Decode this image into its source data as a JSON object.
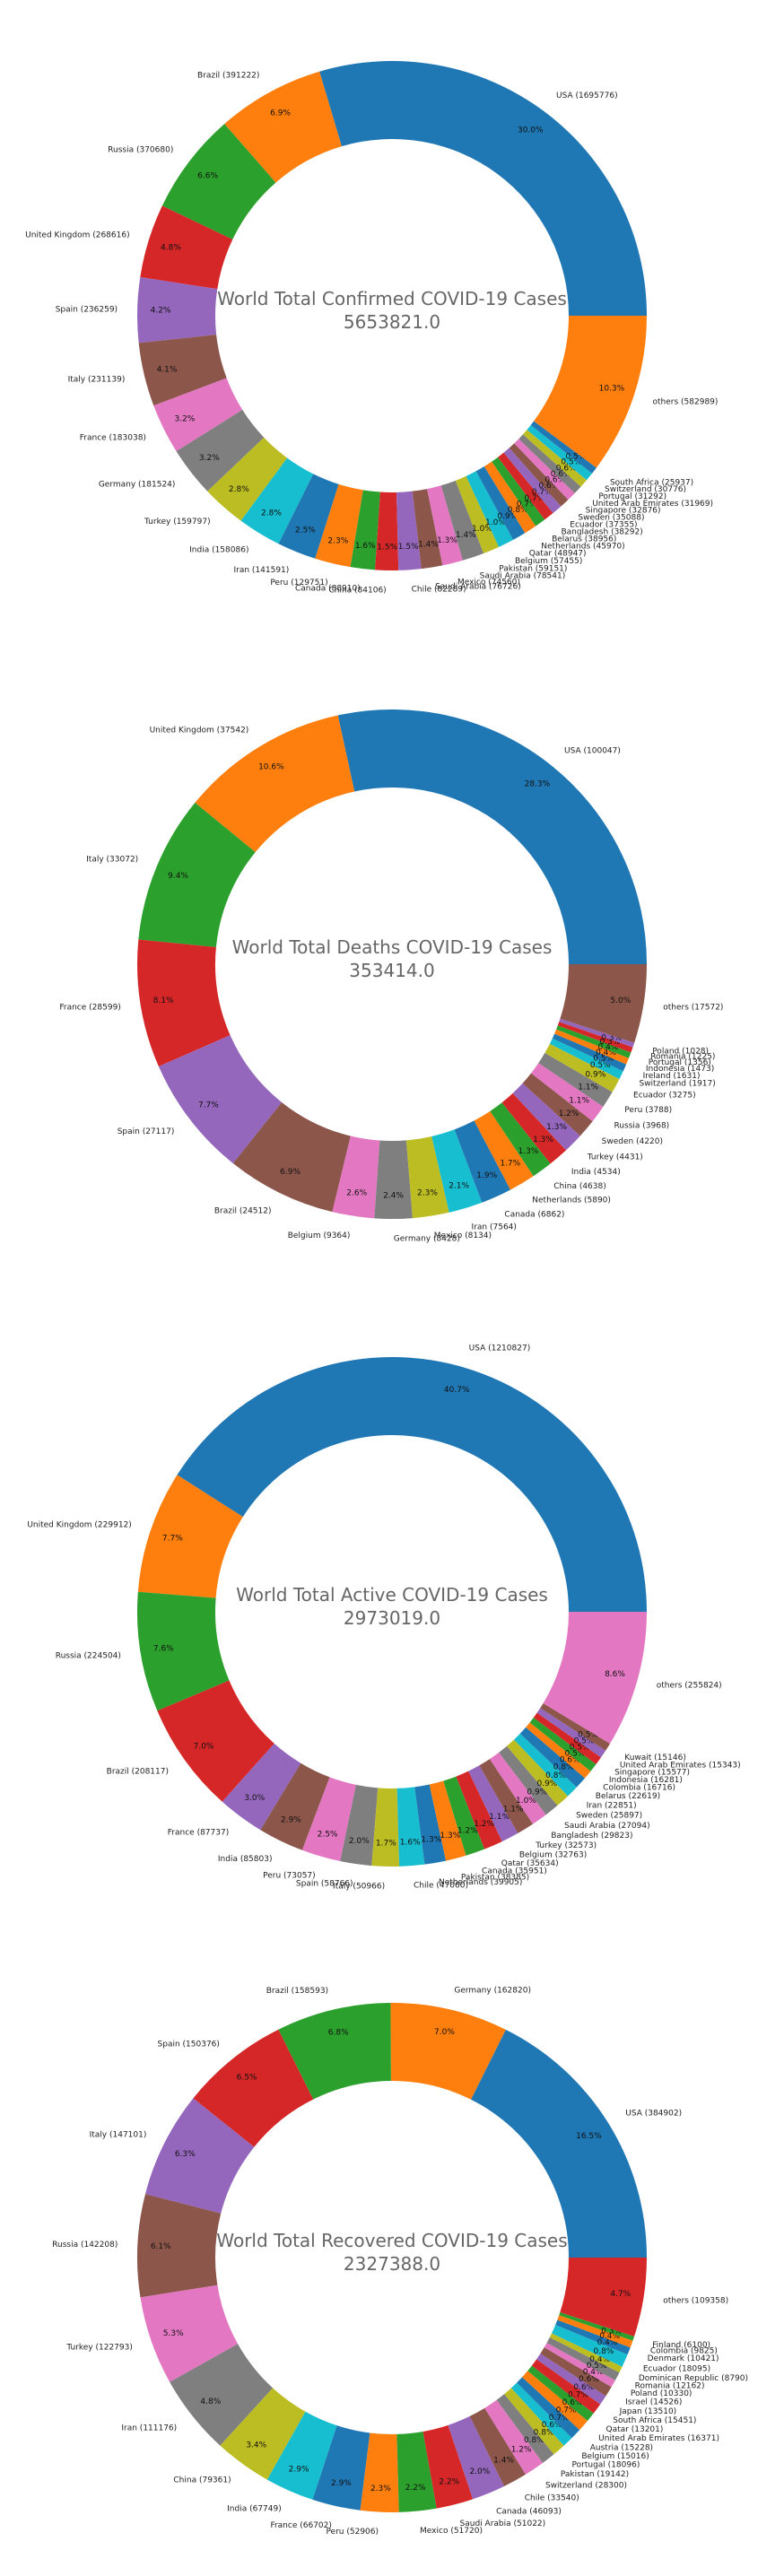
{
  "chart_data": [
    {
      "type": "pie",
      "title": "World Total Confirmed COVID-19 Cases",
      "total": "5653821.0",
      "slices": [
        {
          "label": "USA (1695776)",
          "value": 1695776,
          "pct": "30.0%"
        },
        {
          "label": "Brazil (391222)",
          "value": 391222,
          "pct": "6.9%"
        },
        {
          "label": "Russia (370680)",
          "value": 370680,
          "pct": "6.6%"
        },
        {
          "label": "United Kingdom (268616)",
          "value": 268616,
          "pct": "4.8%"
        },
        {
          "label": "Spain (236259)",
          "value": 236259,
          "pct": "4.2%"
        },
        {
          "label": "Italy (231139)",
          "value": 231139,
          "pct": "4.1%"
        },
        {
          "label": "France (183038)",
          "value": 183038,
          "pct": "3.2%"
        },
        {
          "label": "Germany (181524)",
          "value": 181524,
          "pct": "3.2%"
        },
        {
          "label": "Turkey (159797)",
          "value": 159797,
          "pct": "2.8%"
        },
        {
          "label": "India (158086)",
          "value": 158086,
          "pct": "2.8%"
        },
        {
          "label": "Iran (141591)",
          "value": 141591,
          "pct": "2.5%"
        },
        {
          "label": "Peru (129751)",
          "value": 129751,
          "pct": "2.3%"
        },
        {
          "label": "Canada (88910)",
          "value": 88910,
          "pct": "1.6%"
        },
        {
          "label": "China (84106)",
          "value": 84106,
          "pct": "1.5%"
        },
        {
          "label": "Chile (82289)",
          "value": 82289,
          "pct": "1.5%"
        },
        {
          "label": "Saudi Arabia (76726)",
          "value": 76726,
          "pct": "1.4%"
        },
        {
          "label": "Mexico (74560)",
          "value": 74560,
          "pct": "1.3%"
        },
        {
          "label": "Saudi Arabia (78541)",
          "value": 78541,
          "pct": "1.4%"
        },
        {
          "label": "Pakistan (59151)",
          "value": 59151,
          "pct": "1.0%"
        },
        {
          "label": "Belgium (57455)",
          "value": 57455,
          "pct": "1.0%"
        },
        {
          "label": "Qatar (48947)",
          "value": 48947,
          "pct": "0.9%"
        },
        {
          "label": "Netherlands (45970)",
          "value": 45970,
          "pct": "0.8%"
        },
        {
          "label": "Belarus (38956)",
          "value": 38956,
          "pct": "0.7%"
        },
        {
          "label": "Bangladesh (38292)",
          "value": 38292,
          "pct": "0.7%"
        },
        {
          "label": "Ecuador (37355)",
          "value": 37355,
          "pct": "0.7%"
        },
        {
          "label": "Sweden (35088)",
          "value": 35088,
          "pct": "0.6%"
        },
        {
          "label": "Singapore (32876)",
          "value": 32876,
          "pct": "0.6%"
        },
        {
          "label": "United Arab Emirates (31969)",
          "value": 31969,
          "pct": "0.6%"
        },
        {
          "label": "Portugal (31292)",
          "value": 31292,
          "pct": "0.6%"
        },
        {
          "label": "Switzerland (30776)",
          "value": 30776,
          "pct": "0.5%"
        },
        {
          "label": "South Africa (25937)",
          "value": 25937,
          "pct": "0.5%"
        },
        {
          "label": "others (582989)",
          "value": 582989,
          "pct": "10.3%"
        }
      ]
    },
    {
      "type": "pie",
      "title": "World Total Deaths COVID-19 Cases",
      "total": "353414.0",
      "slices": [
        {
          "label": "USA (100047)",
          "value": 100047,
          "pct": "28.3%"
        },
        {
          "label": "United Kingdom (37542)",
          "value": 37542,
          "pct": "10.6%"
        },
        {
          "label": "Italy (33072)",
          "value": 33072,
          "pct": "9.4%"
        },
        {
          "label": "France (28599)",
          "value": 28599,
          "pct": "8.1%"
        },
        {
          "label": "Spain (27117)",
          "value": 27117,
          "pct": "7.7%"
        },
        {
          "label": "Brazil (24512)",
          "value": 24512,
          "pct": "6.9%"
        },
        {
          "label": "Belgium (9364)",
          "value": 9364,
          "pct": "2.6%"
        },
        {
          "label": "Germany (8428)",
          "value": 8428,
          "pct": "2.4%"
        },
        {
          "label": "Mexico (8134)",
          "value": 8134,
          "pct": "2.3%"
        },
        {
          "label": "Iran (7564)",
          "value": 7564,
          "pct": "2.1%"
        },
        {
          "label": "Canada (6862)",
          "value": 6862,
          "pct": "1.9%"
        },
        {
          "label": "Netherlands (5890)",
          "value": 5890,
          "pct": "1.7%"
        },
        {
          "label": "China (4638)",
          "value": 4638,
          "pct": "1.3%"
        },
        {
          "label": "India (4534)",
          "value": 4534,
          "pct": "1.3%"
        },
        {
          "label": "Turkey (4431)",
          "value": 4431,
          "pct": "1.3%"
        },
        {
          "label": "Sweden (4220)",
          "value": 4220,
          "pct": "1.2%"
        },
        {
          "label": "Russia (3968)",
          "value": 3968,
          "pct": "1.1%"
        },
        {
          "label": "Peru (3788)",
          "value": 3788,
          "pct": "1.1%"
        },
        {
          "label": "Ecuador (3275)",
          "value": 3275,
          "pct": "0.9%"
        },
        {
          "label": "Switzerland (1917)",
          "value": 1917,
          "pct": "0.5%"
        },
        {
          "label": "Ireland (1631)",
          "value": 1631,
          "pct": "0.5%"
        },
        {
          "label": "Indonesia (1473)",
          "value": 1473,
          "pct": "0.4%"
        },
        {
          "label": "Portugal (1356)",
          "value": 1356,
          "pct": "0.4%"
        },
        {
          "label": "Romania (1225)",
          "value": 1225,
          "pct": "0.3%"
        },
        {
          "label": "Poland (1028)",
          "value": 1028,
          "pct": "0.3%"
        },
        {
          "label": "others (17572)",
          "value": 17572,
          "pct": "5.0%"
        }
      ]
    },
    {
      "type": "pie",
      "title": "World Total Active COVID-19 Cases",
      "total": "2973019.0",
      "slices": [
        {
          "label": "USA (1210827)",
          "value": 1210827,
          "pct": "40.7%"
        },
        {
          "label": "United Kingdom (229912)",
          "value": 229912,
          "pct": "7.7%"
        },
        {
          "label": "Russia (224504)",
          "value": 224504,
          "pct": "7.6%"
        },
        {
          "label": "Brazil (208117)",
          "value": 208117,
          "pct": "7.0%"
        },
        {
          "label": "France (87737)",
          "value": 87737,
          "pct": "3.0%"
        },
        {
          "label": "India (85803)",
          "value": 85803,
          "pct": "2.9%"
        },
        {
          "label": "Peru (73057)",
          "value": 73057,
          "pct": "2.5%"
        },
        {
          "label": "Spain (58766)",
          "value": 58766,
          "pct": "2.0%"
        },
        {
          "label": "Italy (50966)",
          "value": 50966,
          "pct": "1.7%"
        },
        {
          "label": "Chile (47060)",
          "value": 47060,
          "pct": "1.6%"
        },
        {
          "label": "Netherlands (39905)",
          "value": 39905,
          "pct": "1.3%"
        },
        {
          "label": "Pakistan (38385)",
          "value": 38385,
          "pct": "1.3%"
        },
        {
          "label": "Canada (35951)",
          "value": 35951,
          "pct": "1.2%"
        },
        {
          "label": "Qatar (35634)",
          "value": 35634,
          "pct": "1.2%"
        },
        {
          "label": "Belgium (32763)",
          "value": 32763,
          "pct": "1.1%"
        },
        {
          "label": "Turkey (32573)",
          "value": 32573,
          "pct": "1.1%"
        },
        {
          "label": "Bangladesh (29823)",
          "value": 29823,
          "pct": "1.0%"
        },
        {
          "label": "Saudi Arabia (27094)",
          "value": 27094,
          "pct": "0.9%"
        },
        {
          "label": "Sweden (25897)",
          "value": 25897,
          "pct": "0.9%"
        },
        {
          "label": "Iran (22851)",
          "value": 22851,
          "pct": "0.8%"
        },
        {
          "label": "Belarus (22619)",
          "value": 22619,
          "pct": "0.8%"
        },
        {
          "label": "Colombia (16716)",
          "value": 16716,
          "pct": "0.6%"
        },
        {
          "label": "Indonesia (16281)",
          "value": 16281,
          "pct": "0.5%"
        },
        {
          "label": "Singapore (15577)",
          "value": 15577,
          "pct": "0.5%"
        },
        {
          "label": "United Arab Emirates (15343)",
          "value": 15343,
          "pct": "0.5%"
        },
        {
          "label": "Kuwait (15146)",
          "value": 15146,
          "pct": "0.5%"
        },
        {
          "label": "others (255824)",
          "value": 255824,
          "pct": "8.6%"
        }
      ]
    },
    {
      "type": "pie",
      "title": "World Total Recovered COVID-19 Cases",
      "total": "2327388.0",
      "slices": [
        {
          "label": "USA (384902)",
          "value": 384902,
          "pct": "16.5%"
        },
        {
          "label": "Germany (162820)",
          "value": 162820,
          "pct": "7.0%"
        },
        {
          "label": "Brazil (158593)",
          "value": 158593,
          "pct": "6.8%"
        },
        {
          "label": "Spain (150376)",
          "value": 150376,
          "pct": "6.5%"
        },
        {
          "label": "Italy (147101)",
          "value": 147101,
          "pct": "6.3%"
        },
        {
          "label": "Russia (142208)",
          "value": 142208,
          "pct": "6.1%"
        },
        {
          "label": "Turkey (122793)",
          "value": 122793,
          "pct": "5.3%"
        },
        {
          "label": "Iran (111176)",
          "value": 111176,
          "pct": "4.8%"
        },
        {
          "label": "China (79361)",
          "value": 79361,
          "pct": "3.4%"
        },
        {
          "label": "India (67749)",
          "value": 67749,
          "pct": "2.9%"
        },
        {
          "label": "France (66702)",
          "value": 66702,
          "pct": "2.9%"
        },
        {
          "label": "Peru (52906)",
          "value": 52906,
          "pct": "2.3%"
        },
        {
          "label": "Mexico (51720)",
          "value": 51720,
          "pct": "2.2%"
        },
        {
          "label": "Saudi Arabia (51022)",
          "value": 51022,
          "pct": "2.2%"
        },
        {
          "label": "Canada (46093)",
          "value": 46093,
          "pct": "2.0%"
        },
        {
          "label": "Chile (33540)",
          "value": 33540,
          "pct": "1.4%"
        },
        {
          "label": "Switzerland (28300)",
          "value": 28300,
          "pct": "1.2%"
        },
        {
          "label": "Pakistan (19142)",
          "value": 19142,
          "pct": "0.8%"
        },
        {
          "label": "Portugal (18096)",
          "value": 18096,
          "pct": "0.8%"
        },
        {
          "label": "Belgium (15016)",
          "value": 15016,
          "pct": "0.6%"
        },
        {
          "label": "Austria (15228)",
          "value": 15228,
          "pct": "0.7%"
        },
        {
          "label": "United Arab Emirates (16371)",
          "value": 16371,
          "pct": "0.7%"
        },
        {
          "label": "Qatar (13201)",
          "value": 13201,
          "pct": "0.6%"
        },
        {
          "label": "South Africa (15451)",
          "value": 15451,
          "pct": "0.7%"
        },
        {
          "label": "Japan (13510)",
          "value": 13510,
          "pct": "0.6%"
        },
        {
          "label": "Israel (14526)",
          "value": 14526,
          "pct": "0.6%"
        },
        {
          "label": "Poland (10330)",
          "value": 10330,
          "pct": "0.4%"
        },
        {
          "label": "Romania (12162)",
          "value": 12162,
          "pct": "0.5%"
        },
        {
          "label": "Dominican Republic (8790)",
          "value": 8790,
          "pct": "0.4%"
        },
        {
          "label": "Ecuador (18095)",
          "value": 18095,
          "pct": "0.8%"
        },
        {
          "label": "Denmark (10421)",
          "value": 10421,
          "pct": "0.4%"
        },
        {
          "label": "Colombia (9825)",
          "value": 9825,
          "pct": "0.4%"
        },
        {
          "label": "Finland (6100)",
          "value": 6100,
          "pct": "0.3%"
        },
        {
          "label": "others (109358)",
          "value": 109358,
          "pct": "4.7%"
        }
      ]
    }
  ],
  "colors": [
    "#1f77b4",
    "#ff7f0e",
    "#2ca02c",
    "#d62728",
    "#9467bd",
    "#8c564b",
    "#e377c2",
    "#7f7f7f",
    "#bcbd22",
    "#17becf"
  ]
}
